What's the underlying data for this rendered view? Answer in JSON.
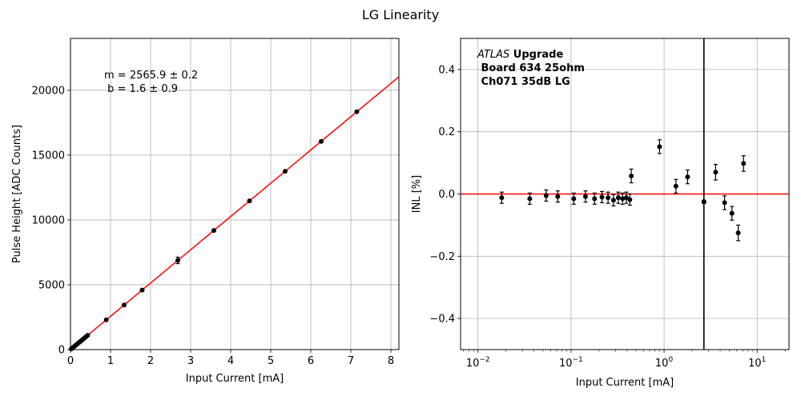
{
  "figure_title": "LG Linearity",
  "chart_data": [
    {
      "type": "scatter",
      "title": "",
      "xlabel": "Input Current [mA]",
      "ylabel": "Pulse Height [ADC Counts]",
      "xlim": [
        0,
        8.2
      ],
      "ylim": [
        0,
        24000
      ],
      "xticks": [
        0,
        1,
        2,
        3,
        4,
        5,
        6,
        7,
        8
      ],
      "yticks": [
        0,
        5000,
        10000,
        15000,
        20000
      ],
      "grid": true,
      "series": [
        {
          "name": "measurements",
          "color": "#000000",
          "x": [
            0.018,
            0.036,
            0.054,
            0.072,
            0.107,
            0.143,
            0.179,
            0.215,
            0.25,
            0.286,
            0.322,
            0.358,
            0.393,
            0.429,
            0.894,
            1.34,
            1.79,
            2.68,
            3.58,
            4.47,
            5.36,
            6.26,
            7.15
          ],
          "y": [
            46,
            92,
            138,
            185,
            275,
            367,
            459,
            552,
            642,
            734,
            826,
            919,
            1010,
            1101,
            2300,
            3440,
            4590,
            6880,
            9185,
            11470,
            13750,
            16060,
            18350
          ],
          "yerr": [
            20,
            20,
            20,
            20,
            20,
            20,
            20,
            20,
            20,
            20,
            20,
            20,
            20,
            20,
            60,
            60,
            60,
            250,
            60,
            60,
            60,
            60,
            60
          ]
        }
      ],
      "fit": {
        "color": "#ff0000",
        "slope": 2565.9,
        "intercept": 1.6
      },
      "annotation": [
        "m = 2565.9 ± 0.2",
        " b = 1.6 ± 0.9"
      ]
    },
    {
      "type": "scatter",
      "title": "",
      "xlabel": "Input Current [mA]",
      "ylabel": "INL [%]",
      "xscale": "log",
      "xlim": [
        0.0065,
        22
      ],
      "ylim": [
        -0.5,
        0.5
      ],
      "xticks": [
        0.01,
        0.1,
        1,
        10
      ],
      "xtick_labels": [
        {
          "base": "10",
          "exp": "−2"
        },
        {
          "base": "10",
          "exp": "−1"
        },
        {
          "base": "10",
          "exp": "0"
        },
        {
          "base": "10",
          "exp": "1"
        }
      ],
      "yticks": [
        -0.4,
        -0.2,
        0.0,
        0.2,
        0.4
      ],
      "ytick_labels": [
        "−0.4",
        "−0.2",
        "0.0",
        "0.2",
        "0.4"
      ],
      "grid": true,
      "series": [
        {
          "name": "INL",
          "color": "#000000",
          "x": [
            0.018,
            0.036,
            0.054,
            0.072,
            0.107,
            0.143,
            0.179,
            0.215,
            0.25,
            0.286,
            0.322,
            0.358,
            0.393,
            0.429,
            0.444,
            0.894,
            1.34,
            1.79,
            2.68,
            3.58,
            4.47,
            5.36,
            6.26,
            7.15
          ],
          "y": [
            -0.012,
            -0.015,
            -0.005,
            -0.008,
            -0.015,
            -0.008,
            -0.015,
            -0.01,
            -0.012,
            -0.02,
            -0.012,
            -0.015,
            -0.012,
            -0.018,
            0.058,
            0.152,
            0.025,
            0.055,
            -0.025,
            0.07,
            -0.028,
            -0.062,
            -0.125,
            0.098
          ],
          "yerr": [
            0.018,
            0.018,
            0.018,
            0.018,
            0.018,
            0.018,
            0.018,
            0.018,
            0.018,
            0.018,
            0.018,
            0.018,
            0.018,
            0.018,
            0.022,
            0.022,
            0.022,
            0.022,
            0.005,
            0.025,
            0.022,
            0.022,
            0.025,
            0.025
          ]
        }
      ],
      "hline": {
        "y": 0.0,
        "color": "#ff0000"
      },
      "vline": {
        "x": 2.68,
        "color": "#000000"
      },
      "annotation": {
        "line1_italic": "ATLAS",
        "line1_bold": " Upgrade",
        "line2": " Board 634 25ohm",
        "line3": " Ch071 35dB LG"
      }
    }
  ]
}
